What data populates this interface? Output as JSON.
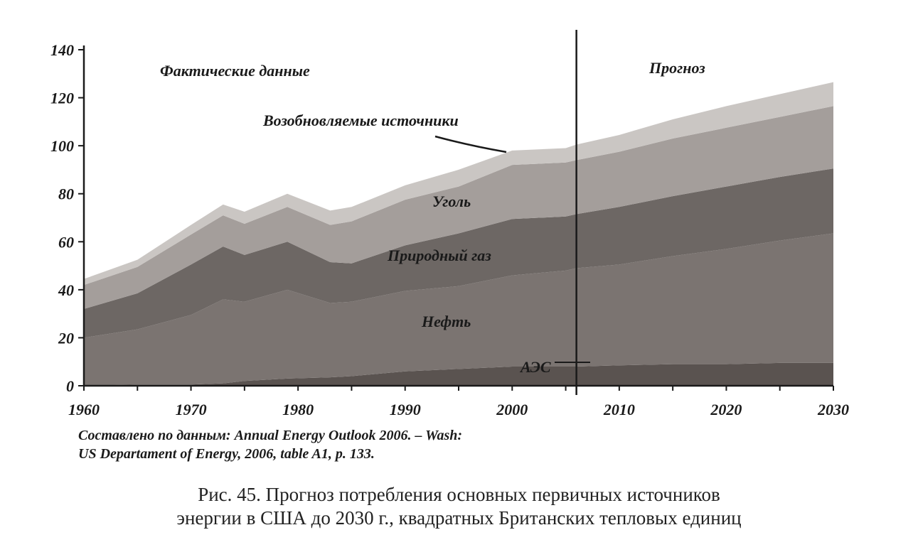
{
  "chart_data": {
    "type": "area",
    "stacked": true,
    "x": [
      1960,
      1965,
      1970,
      1973,
      1975,
      1979,
      1983,
      1985,
      1990,
      1995,
      2000,
      2005,
      2006,
      2010,
      2015,
      2020,
      2025,
      2030
    ],
    "series": [
      {
        "name": "АЭС",
        "values": [
          0,
          0.5,
          0.5,
          1,
          2,
          3,
          3.5,
          4,
          6,
          7,
          8,
          8,
          8,
          8.5,
          9,
          9,
          9.5,
          9.5
        ],
        "color": "#5a5350"
      },
      {
        "name": "Нефть",
        "values": [
          20,
          23,
          29,
          35,
          33,
          37,
          31,
          31,
          33.5,
          34.5,
          38,
          40,
          41,
          42,
          45,
          48,
          51,
          54
        ],
        "color": "#7b7471"
      },
      {
        "name": "Природный газ",
        "values": [
          12,
          15,
          21,
          22,
          19.5,
          20,
          17,
          16,
          19,
          22,
          23.5,
          22.5,
          22.5,
          24,
          25,
          26,
          26.5,
          27
        ],
        "color": "#6d6764"
      },
      {
        "name": "Уголь",
        "values": [
          10,
          11,
          12.5,
          13,
          13,
          14.5,
          15.5,
          17.5,
          19,
          19.5,
          22.5,
          22.5,
          22.5,
          23,
          24,
          24.5,
          25,
          26
        ],
        "color": "#a49e9b"
      },
      {
        "name": "Возобновляемые источники",
        "values": [
          2.5,
          3,
          4,
          4.5,
          5,
          5.5,
          6,
          6,
          6,
          7,
          6,
          6,
          6.5,
          7,
          8,
          9,
          9.5,
          10
        ],
        "color": "#cac6c3"
      }
    ],
    "ylim": [
      0,
      140
    ],
    "yticks": [
      "0",
      "20",
      "40",
      "60",
      "80",
      "100",
      "120",
      "140"
    ],
    "xlim": [
      1960,
      2030
    ],
    "xticks": [
      "1960",
      "1970",
      "1980",
      "1990",
      "2000",
      "2010",
      "2020",
      "2030"
    ],
    "forecast_start": 2006,
    "region_labels": {
      "actual": "Фактические данные",
      "forecast": "Прогноз"
    }
  },
  "source_line1": "Составлено по данным: Annual Energy Outlook 2006. – Wash:",
  "source_line2": "US Departament of Energy, 2006, table A1, p. 133.",
  "caption_line1": "Рис. 45. Прогноз потребления основных первичных источников",
  "caption_line2": "энергии в США до 2030 г., квадратных Британских тепловых единиц"
}
